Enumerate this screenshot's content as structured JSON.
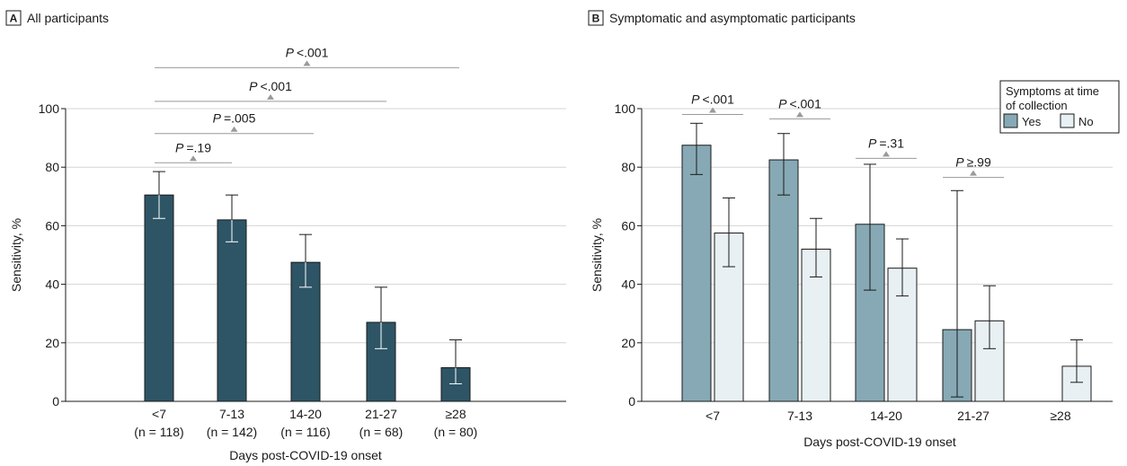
{
  "chart_data": [
    {
      "panel_letter": "A",
      "type": "bar",
      "title": "All participants",
      "categories": [
        "<7",
        "7-13",
        "14-20",
        "21-27",
        "≥28"
      ],
      "category_n": [
        "(n = 118)",
        "(n = 142)",
        "(n = 116)",
        "(n = 68)",
        "(n = 80)"
      ],
      "series": [
        {
          "values": [
            70.5,
            62,
            47.5,
            27,
            11.5
          ],
          "lower": [
            62.5,
            54.5,
            39,
            18,
            6
          ],
          "upper": [
            78.5,
            70.5,
            57,
            39,
            21
          ]
        }
      ],
      "xlabel": "Days post-COVID-19 onset",
      "ylabel": "Sensitivity, %",
      "ylim": [
        0,
        100
      ],
      "yticks": [
        0,
        20,
        40,
        60,
        80,
        100
      ],
      "grid": true,
      "colors": [
        "#2d5566"
      ],
      "comparisons": [
        {
          "from": 0,
          "to": 1,
          "y": 81.5,
          "p_label": "P",
          "p_value": "=.19"
        },
        {
          "from": 0,
          "to": 2,
          "y": 91.5,
          "p_label": "P",
          "p_value": "=.005"
        },
        {
          "from": 0,
          "to": 3,
          "y": 102.5,
          "p_label": "P",
          "p_value": "<.001"
        },
        {
          "from": 0,
          "to": 4,
          "y": 114,
          "p_label": "P",
          "p_value": "<.001"
        }
      ]
    },
    {
      "panel_letter": "B",
      "type": "bar",
      "title": "Symptomatic and asymptomatic participants",
      "categories": [
        "<7",
        "7-13",
        "14-20",
        "21-27",
        "≥28"
      ],
      "series": [
        {
          "name": "Yes",
          "values": [
            87.5,
            82.5,
            60.5,
            24.5,
            null
          ],
          "lower": [
            77.5,
            70.5,
            38,
            1.5,
            null
          ],
          "upper": [
            95,
            91.5,
            81,
            72,
            null
          ]
        },
        {
          "name": "No",
          "values": [
            57.5,
            52,
            45.5,
            27.5,
            12
          ],
          "lower": [
            46,
            42.5,
            36,
            18,
            6.5
          ],
          "upper": [
            69.5,
            62.5,
            55.5,
            39.5,
            21
          ]
        }
      ],
      "legend_title": "Symptoms at time of collection",
      "legend_title_lines": [
        "Symptoms at time",
        "of collection"
      ],
      "legend_position": "top-right",
      "xlabel": "Days post-COVID-19 onset",
      "ylabel": "Sensitivity, %",
      "ylim": [
        0,
        100
      ],
      "yticks": [
        0,
        20,
        40,
        60,
        80,
        100
      ],
      "grid": true,
      "colors": [
        "#86a9b5",
        "#e8f0f3"
      ],
      "comparisons": [
        {
          "cat": 0,
          "y": 98,
          "p_label": "P",
          "p_value": "<.001"
        },
        {
          "cat": 1,
          "y": 96.5,
          "p_label": "P",
          "p_value": "<.001"
        },
        {
          "cat": 2,
          "y": 83,
          "p_label": "P",
          "p_value": "=.31"
        },
        {
          "cat": 3,
          "y": 76.5,
          "p_label": "P",
          "p_value": "≥.99"
        }
      ]
    }
  ]
}
